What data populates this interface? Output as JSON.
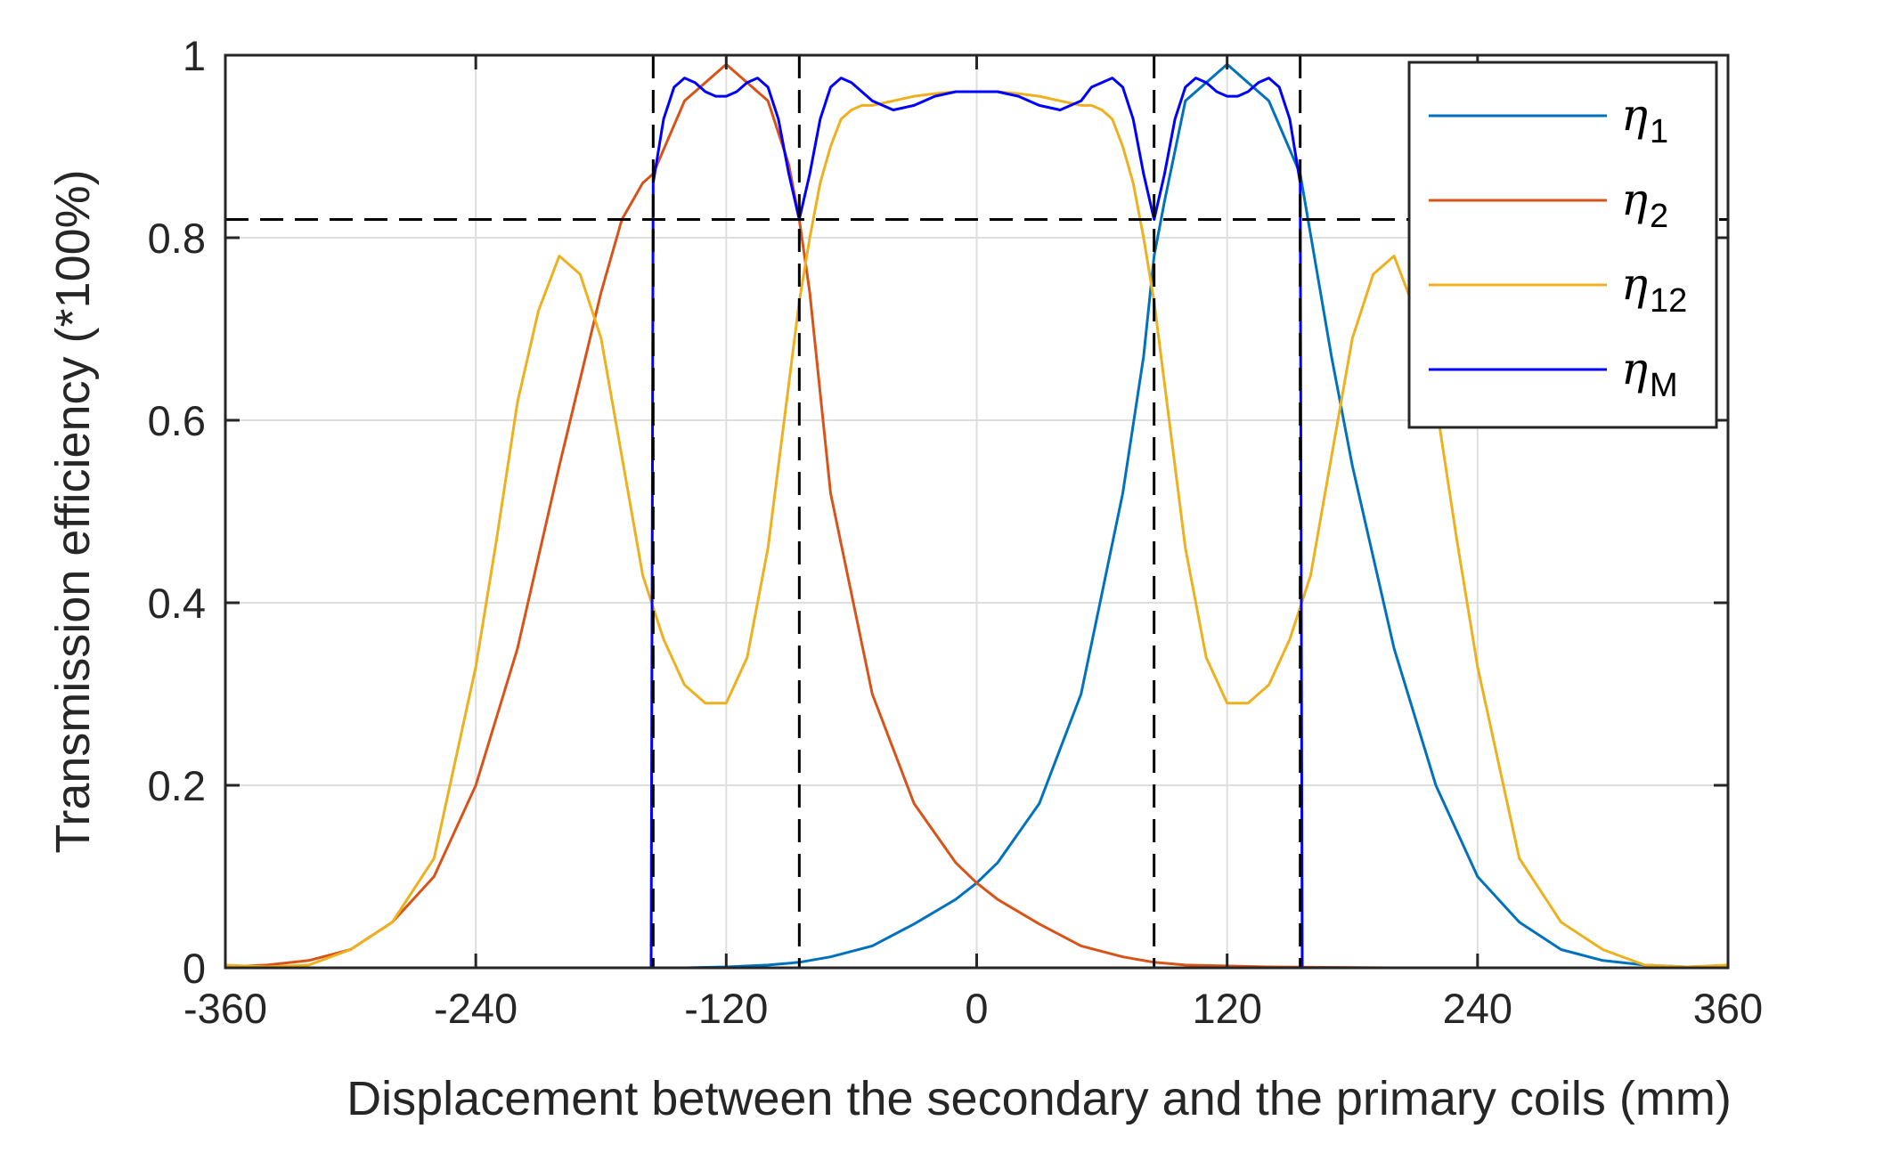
{
  "chart_data": {
    "type": "line",
    "xlabel": "Displacement between the secondary and the primary coils (mm)",
    "ylabel": "Transmission efficiency (*100%)",
    "xlim": [
      -360,
      360
    ],
    "ylim": [
      0,
      1
    ],
    "xticks": [
      -360,
      -240,
      -120,
      0,
      120,
      240,
      360
    ],
    "xtick_labels": [
      "-360",
      "-240",
      "-120",
      "0",
      "120",
      "240",
      "360"
    ],
    "yticks": [
      0,
      0.2,
      0.4,
      0.6,
      0.8,
      1
    ],
    "ytick_labels": [
      "0",
      "0.2",
      "0.4",
      "0.6",
      "0.8",
      "1"
    ],
    "grid": true,
    "legend_position": "top-right",
    "threshold_y": 0.82,
    "switch_x": [
      -155,
      -85,
      85,
      155
    ],
    "series": [
      {
        "name": "η1",
        "symbol": "η",
        "subscript": "1",
        "color": "#0072BD",
        "x": [
          -360,
          -300,
          -240,
          -200,
          -170,
          -155,
          -140,
          -120,
          -100,
          -85,
          -70,
          -50,
          -30,
          -10,
          0,
          10,
          30,
          50,
          70,
          80,
          85,
          90,
          100,
          120,
          140,
          155,
          170,
          180,
          200,
          220,
          240,
          260,
          280,
          300,
          320,
          340,
          360
        ],
        "y": [
          0,
          0,
          0,
          0,
          0,
          0,
          0,
          0.001,
          0.003,
          0.006,
          0.012,
          0.024,
          0.048,
          0.075,
          0.093,
          0.115,
          0.18,
          0.3,
          0.52,
          0.67,
          0.78,
          0.84,
          0.95,
          0.99,
          0.95,
          0.87,
          0.67,
          0.55,
          0.35,
          0.2,
          0.1,
          0.05,
          0.02,
          0.008,
          0.003,
          0.001,
          0
        ]
      },
      {
        "name": "η2",
        "symbol": "η",
        "subscript": "2",
        "color": "#D95319",
        "x": [
          -360,
          -340,
          -320,
          -300,
          -280,
          -260,
          -240,
          -220,
          -200,
          -180,
          -170,
          -160,
          -155,
          -140,
          -120,
          -100,
          -90,
          -85,
          -80,
          -70,
          -50,
          -30,
          -10,
          0,
          10,
          30,
          50,
          70,
          85,
          100,
          140,
          200,
          360
        ],
        "y": [
          0.001,
          0.003,
          0.008,
          0.02,
          0.05,
          0.1,
          0.2,
          0.35,
          0.55,
          0.74,
          0.82,
          0.86,
          0.87,
          0.95,
          0.99,
          0.95,
          0.88,
          0.82,
          0.74,
          0.52,
          0.3,
          0.18,
          0.115,
          0.093,
          0.075,
          0.048,
          0.024,
          0.012,
          0.006,
          0.003,
          0.001,
          0,
          0
        ]
      },
      {
        "name": "η12",
        "symbol": "η",
        "subscript": "12",
        "color": "#EDB120",
        "x": [
          -360,
          -340,
          -320,
          -300,
          -280,
          -260,
          -240,
          -230,
          -220,
          -210,
          -200,
          -190,
          -180,
          -170,
          -160,
          -150,
          -140,
          -130,
          -120,
          -110,
          -100,
          -95,
          -90,
          -85,
          -80,
          -75,
          -70,
          -65,
          -60,
          -55,
          -50,
          -40,
          -30,
          -20,
          -10,
          0,
          10,
          20,
          30,
          40,
          50,
          55,
          60,
          65,
          70,
          75,
          80,
          85,
          90,
          95,
          100,
          110,
          120,
          130,
          140,
          150,
          160,
          170,
          180,
          190,
          200,
          210,
          220,
          230,
          240,
          260,
          280,
          300,
          320,
          340,
          360
        ],
        "y": [
          0.003,
          0.001,
          0.003,
          0.02,
          0.05,
          0.12,
          0.33,
          0.47,
          0.62,
          0.72,
          0.78,
          0.76,
          0.69,
          0.56,
          0.43,
          0.36,
          0.31,
          0.29,
          0.29,
          0.34,
          0.46,
          0.55,
          0.64,
          0.73,
          0.8,
          0.86,
          0.9,
          0.93,
          0.94,
          0.945,
          0.945,
          0.95,
          0.955,
          0.958,
          0.96,
          0.96,
          0.96,
          0.958,
          0.955,
          0.95,
          0.945,
          0.945,
          0.94,
          0.93,
          0.9,
          0.86,
          0.8,
          0.73,
          0.64,
          0.55,
          0.46,
          0.34,
          0.29,
          0.29,
          0.31,
          0.36,
          0.43,
          0.56,
          0.69,
          0.76,
          0.78,
          0.72,
          0.62,
          0.47,
          0.33,
          0.12,
          0.05,
          0.02,
          0.003,
          0.001,
          0.003
        ]
      },
      {
        "name": "ηM",
        "symbol": "η",
        "subscript": "M",
        "color": "#0000FF",
        "x": [
          -360,
          -156,
          -155,
          -150,
          -145,
          -140,
          -135,
          -130,
          -125,
          -120,
          -115,
          -110,
          -105,
          -100,
          -95,
          -90,
          -85,
          -80,
          -75,
          -70,
          -65,
          -60,
          -50,
          -40,
          -30,
          -20,
          -10,
          0,
          10,
          20,
          30,
          40,
          50,
          55,
          60,
          65,
          70,
          75,
          80,
          85,
          90,
          95,
          100,
          105,
          110,
          115,
          120,
          125,
          130,
          135,
          140,
          145,
          150,
          155,
          156,
          360
        ],
        "y": [
          0,
          0,
          0.86,
          0.93,
          0.965,
          0.975,
          0.97,
          0.96,
          0.955,
          0.955,
          0.96,
          0.97,
          0.975,
          0.965,
          0.93,
          0.87,
          0.82,
          0.87,
          0.93,
          0.965,
          0.975,
          0.97,
          0.95,
          0.94,
          0.945,
          0.955,
          0.96,
          0.96,
          0.96,
          0.955,
          0.945,
          0.94,
          0.95,
          0.965,
          0.97,
          0.975,
          0.965,
          0.93,
          0.87,
          0.82,
          0.87,
          0.93,
          0.965,
          0.975,
          0.97,
          0.96,
          0.955,
          0.955,
          0.96,
          0.97,
          0.975,
          0.965,
          0.93,
          0.86,
          0,
          0
        ]
      }
    ]
  }
}
